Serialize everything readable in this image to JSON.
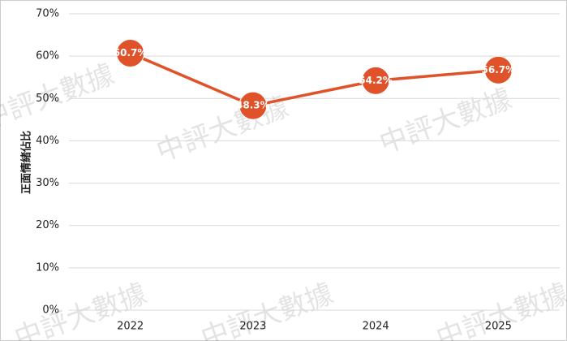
{
  "chart_data": {
    "type": "line",
    "y_label": "正面情緒佔比",
    "watermark": "中評大數據",
    "categories": [
      "2022",
      "2023",
      "2024",
      "2025"
    ],
    "series": [
      {
        "color": "#e0522a",
        "values": [
          60.7,
          48.3,
          54.2,
          56.7
        ],
        "value_labels": [
          "60.7%",
          "48.3%",
          "54.2%",
          "56.7%"
        ]
      }
    ],
    "ylim": [
      0,
      70
    ],
    "yticks": [
      {
        "value": 0,
        "label": "0%"
      },
      {
        "value": 10,
        "label": "10%"
      },
      {
        "value": 20,
        "label": "20%"
      },
      {
        "value": 30,
        "label": "30%"
      },
      {
        "value": 40,
        "label": "40%"
      },
      {
        "value": 50,
        "label": "50%"
      },
      {
        "value": 60,
        "label": "60%"
      },
      {
        "value": 70,
        "label": "70%"
      }
    ],
    "grid": true
  }
}
